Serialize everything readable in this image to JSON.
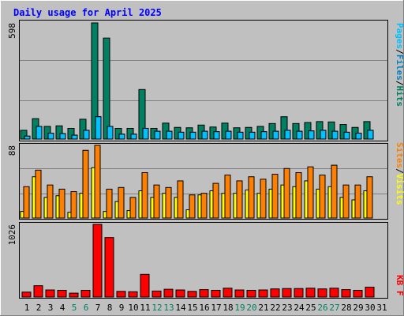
{
  "chart_data": [
    {
      "type": "bar",
      "title": "Daily usage for April 2025",
      "ymax_label": "598",
      "legend": [
        {
          "text": "Pages",
          "color": "#00c0ff"
        },
        {
          "text": "/",
          "color": "#000000"
        },
        {
          "text": "Files",
          "color": "#0080c0"
        },
        {
          "text": "/",
          "color": "#000000"
        },
        {
          "text": "Hits",
          "color": "#008060"
        }
      ],
      "ylim": [
        0,
        598
      ],
      "categories": [
        "1",
        "2",
        "3",
        "4",
        "5",
        "6",
        "7",
        "8",
        "9",
        "10",
        "11",
        "12",
        "13",
        "14",
        "15",
        "16",
        "17",
        "18",
        "19",
        "20",
        "21",
        "22",
        "23",
        "24",
        "25",
        "26",
        "27",
        "28",
        "29",
        "30",
        "31"
      ],
      "series": [
        {
          "name": "Hits",
          "color": "#008060",
          "values": [
            45,
            105,
            65,
            68,
            55,
            102,
            598,
            520,
            55,
            55,
            255,
            55,
            82,
            60,
            58,
            72,
            62,
            82,
            58,
            60,
            65,
            80,
            115,
            80,
            85,
            90,
            88,
            75,
            60,
            90,
            null
          ]
        },
        {
          "name": "Files",
          "color": "#0080c0",
          "values": [
            15,
            65,
            30,
            28,
            20,
            45,
            115,
            65,
            25,
            25,
            55,
            40,
            40,
            35,
            35,
            40,
            38,
            40,
            35,
            35,
            38,
            40,
            45,
            40,
            42,
            45,
            40,
            35,
            30,
            45,
            null
          ]
        },
        {
          "name": "Pages",
          "color": "#00c0ff",
          "values": [
            15,
            65,
            30,
            28,
            20,
            45,
            115,
            65,
            25,
            25,
            55,
            40,
            40,
            35,
            35,
            40,
            38,
            40,
            35,
            35,
            38,
            40,
            45,
            40,
            42,
            45,
            40,
            35,
            30,
            45,
            null
          ]
        }
      ]
    },
    {
      "type": "bar",
      "ymax_label": "88",
      "legend": [
        {
          "text": "Sites",
          "color": "#ff8000"
        },
        {
          "text": "/",
          "color": "#000000"
        },
        {
          "text": "Visits",
          "color": "#ffff00"
        }
      ],
      "ylim": [
        0,
        88
      ],
      "categories": [
        "1",
        "2",
        "3",
        "4",
        "5",
        "6",
        "7",
        "8",
        "9",
        "10",
        "11",
        "12",
        "13",
        "14",
        "15",
        "16",
        "17",
        "18",
        "19",
        "20",
        "21",
        "22",
        "23",
        "24",
        "25",
        "26",
        "27",
        "28",
        "29",
        "30",
        "31"
      ],
      "series": [
        {
          "name": "Visits",
          "color": "#ffff00",
          "values": [
            8,
            50,
            25,
            27,
            7,
            30,
            61,
            8,
            20,
            9,
            33,
            25,
            30,
            25,
            10,
            28,
            33,
            30,
            30,
            34,
            30,
            35,
            40,
            38,
            45,
            35,
            38,
            25,
            22,
            33,
            null
          ]
        },
        {
          "name": "Sites",
          "color": "#ff8000",
          "values": [
            38,
            58,
            40,
            35,
            32,
            82,
            88,
            35,
            37,
            25,
            55,
            40,
            37,
            45,
            28,
            30,
            42,
            52,
            45,
            50,
            47,
            53,
            60,
            55,
            62,
            52,
            64,
            40,
            40,
            50,
            null
          ]
        }
      ]
    },
    {
      "type": "bar",
      "ymax_label": "1026",
      "legend": [
        {
          "text": "KB F",
          "color": "#ff0000"
        }
      ],
      "ylim": [
        0,
        1026
      ],
      "categories": [
        "1",
        "2",
        "3",
        "4",
        "5",
        "6",
        "7",
        "8",
        "9",
        "10",
        "11",
        "12",
        "13",
        "14",
        "15",
        "16",
        "17",
        "18",
        "19",
        "20",
        "21",
        "22",
        "23",
        "24",
        "25",
        "26",
        "27",
        "28",
        "29",
        "30",
        "31"
      ],
      "series": [
        {
          "name": "KB F",
          "color": "#ff0000",
          "values": [
            70,
            160,
            100,
            95,
            55,
            95,
            1026,
            840,
            80,
            75,
            320,
            85,
            110,
            100,
            80,
            105,
            95,
            125,
            100,
            95,
            100,
            115,
            120,
            120,
            125,
            115,
            125,
            105,
            95,
            140,
            null
          ]
        }
      ]
    }
  ],
  "x_axis": {
    "labels": [
      "1",
      "2",
      "3",
      "4",
      "5",
      "6",
      "7",
      "8",
      "9",
      "10",
      "11",
      "12",
      "13",
      "14",
      "15",
      "16",
      "17",
      "18",
      "19",
      "20",
      "21",
      "22",
      "23",
      "24",
      "25",
      "26",
      "27",
      "28",
      "29",
      "30",
      "31"
    ],
    "weekend_days": [
      "5",
      "6",
      "12",
      "13",
      "19",
      "20",
      "26",
      "27"
    ],
    "weekday_color": "#000000",
    "weekend_color": "#008060"
  },
  "colors": {
    "background": "#c0c0c0",
    "plot_background": "#c0c0c0",
    "gridline": "#808080",
    "title": "#0000ff",
    "bar_outline": "#000000"
  }
}
